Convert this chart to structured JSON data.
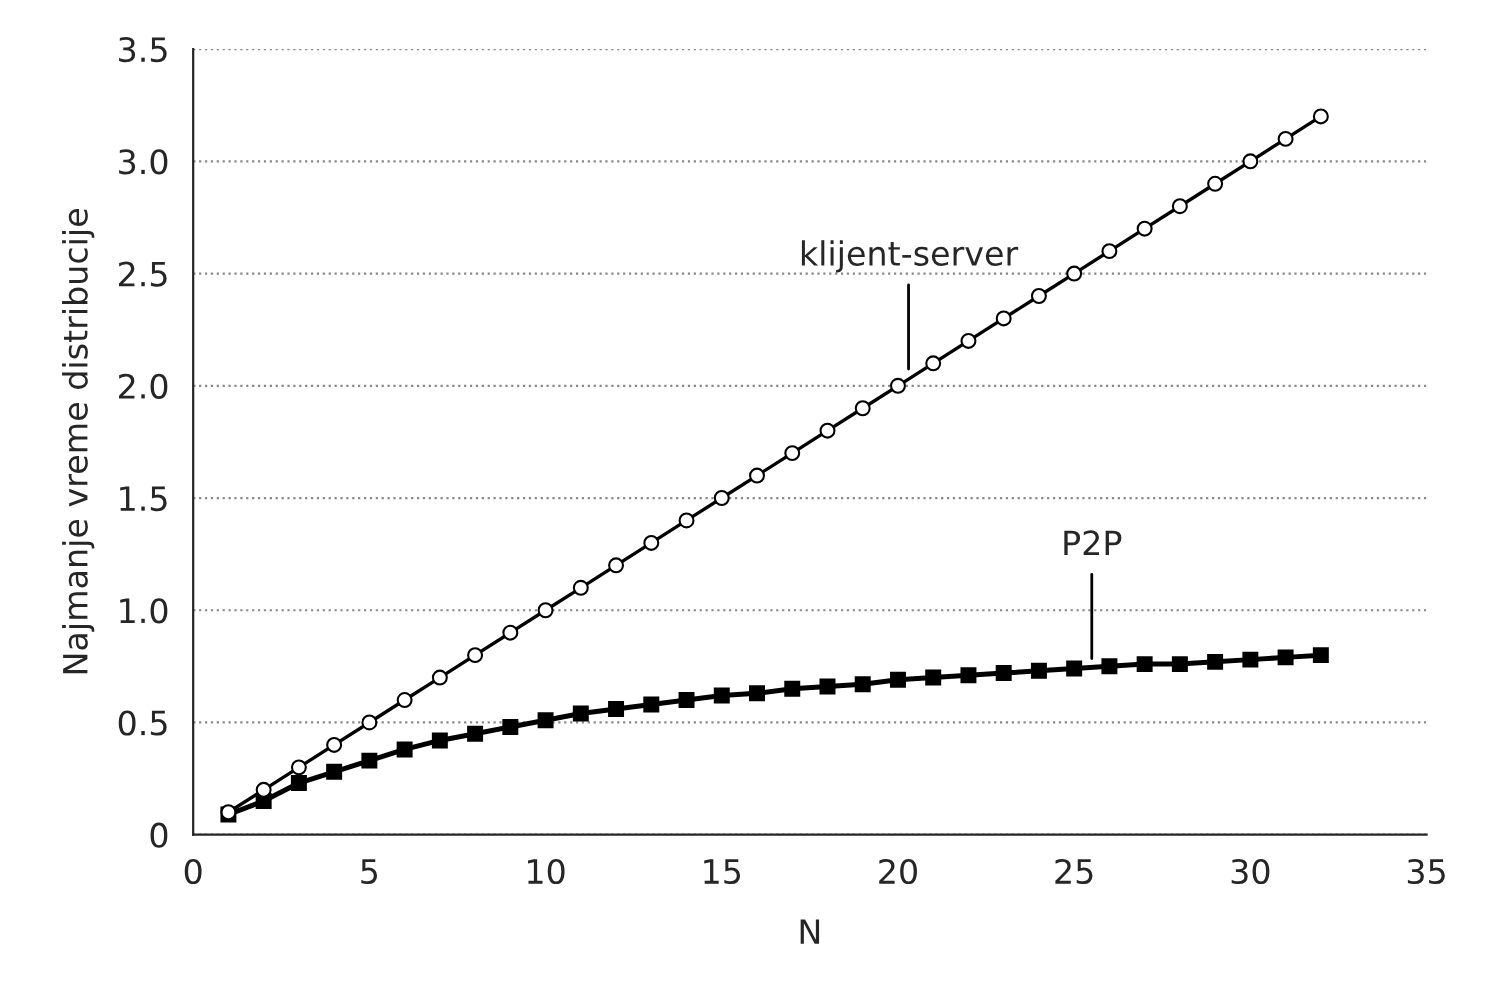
{
  "chart_data": {
    "type": "line",
    "xlabel": "N",
    "ylabel": "Najmanje vreme distribucije",
    "x": [
      1,
      2,
      3,
      4,
      5,
      6,
      7,
      8,
      9,
      10,
      11,
      12,
      13,
      14,
      15,
      16,
      17,
      18,
      19,
      20,
      21,
      22,
      23,
      24,
      25,
      26,
      27,
      28,
      29,
      30,
      31,
      32
    ],
    "series": [
      {
        "color": "#000000",
        "marker": "circle",
        "values": [
          0.1,
          0.2,
          0.3,
          0.4,
          0.5,
          0.6,
          0.7,
          0.8,
          0.9,
          1.0,
          1.1,
          1.2,
          1.3,
          1.4,
          1.5,
          1.6,
          1.7,
          1.8,
          1.9,
          2.0,
          2.1,
          2.2,
          2.3,
          2.4,
          2.5,
          2.6,
          2.7,
          2.8,
          2.9,
          3.0,
          3.1,
          3.2
        ]
      },
      {
        "color": "#000000",
        "marker": "square",
        "values": [
          0.09,
          0.15,
          0.23,
          0.28,
          0.33,
          0.38,
          0.42,
          0.45,
          0.48,
          0.51,
          0.54,
          0.56,
          0.58,
          0.6,
          0.62,
          0.63,
          0.65,
          0.66,
          0.67,
          0.69,
          0.7,
          0.71,
          0.72,
          0.73,
          0.74,
          0.75,
          0.76,
          0.76,
          0.77,
          0.78,
          0.79,
          0.8
        ]
      }
    ],
    "annotations": [
      {
        "text": "klijent-server",
        "x": 20.3,
        "y": 2.05
      },
      {
        "text": "P2P",
        "x": 25.5,
        "y": 0.76
      }
    ],
    "xlim": [
      0,
      35
    ],
    "xticks": [
      0,
      5,
      10,
      15,
      20,
      25,
      30,
      35
    ],
    "ylim": [
      0,
      3.5
    ],
    "yticks": [
      {
        "value": 0,
        "label": "0"
      },
      {
        "value": 0.5,
        "label": "0.5"
      },
      {
        "value": 1.0,
        "label": "1.0"
      },
      {
        "value": 1.5,
        "label": "1.5"
      },
      {
        "value": 2.0,
        "label": "2.0"
      },
      {
        "value": 2.5,
        "label": "2.5"
      },
      {
        "value": 3.0,
        "label": "3.0"
      },
      {
        "value": 3.5,
        "label": "3.5"
      }
    ],
    "grid": "y",
    "line_style": "solid"
  }
}
